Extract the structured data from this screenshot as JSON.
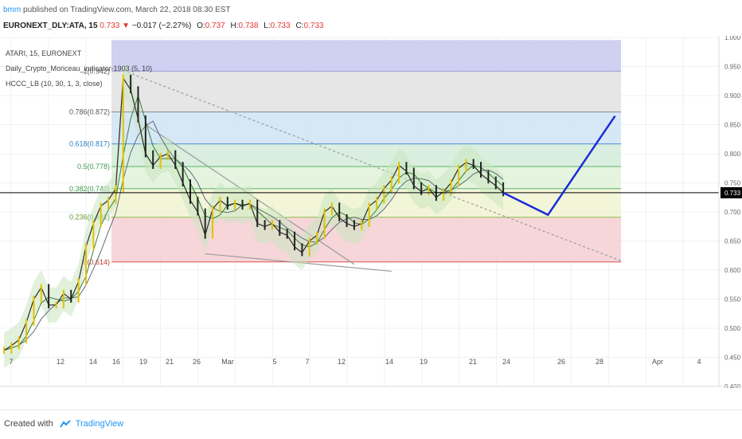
{
  "header": {
    "publisher": "bmm",
    "published_text": "published on TradingView.com, March 22, 2018 08:30 EST",
    "symbol": "EURONEXT_DLY:ATA, 15",
    "last": "0.733",
    "change_arrow": "▼",
    "change": "−0.017 (−2.27%)",
    "o_label": "O:",
    "o": "0.737",
    "h_label": "H:",
    "h": "0.738",
    "l_label": "L:",
    "l": "0.733",
    "c_label": "C:",
    "c": "0.733"
  },
  "legend": {
    "line1": "ATARI, 15, EURONEXT",
    "line2": "Daily_Crypto_Moriceau_indicator-1903 (5, 10)",
    "line3": "HCCC_LB (10, 30, 1, 3, close)"
  },
  "footer": {
    "created_with": "Created with",
    "brand": "TradingView"
  },
  "colors": {
    "up": "#e5c000",
    "down": "#222222",
    "accent": "#2196f3",
    "projection": "#1a2bd6",
    "price_tag": "#000000"
  },
  "chart_data": {
    "type": "line",
    "title": "",
    "ylim": [
      0.4,
      1.0
    ],
    "y_ticks": [
      "1.000",
      "0.950",
      "0.900",
      "0.850",
      "0.800",
      "0.750",
      "0.700",
      "0.650",
      "0.600",
      "0.550",
      "0.500",
      "0.450",
      "0.400"
    ],
    "x_ticks": [
      "7",
      "12",
      "14",
      "16",
      "19",
      "21",
      "26",
      "Mar",
      "5",
      "7",
      "12",
      "14",
      "19",
      "21",
      "24",
      "26",
      "28",
      "Apr",
      "4"
    ],
    "current_price": "0.733",
    "fib_levels": [
      {
        "label": "1(0.942)",
        "value": 0.942
      },
      {
        "label": "0.786(0.872)",
        "value": 0.872
      },
      {
        "label": "0.618(0.817)",
        "value": 0.817
      },
      {
        "label": "0.5(0.778)",
        "value": 0.778
      },
      {
        "label": "0.382(0.740)",
        "value": 0.74
      },
      {
        "label": "0.236(0.691)",
        "value": 0.691
      },
      {
        "label": "0(0.614)",
        "value": 0.614
      }
    ],
    "price_series": [
      {
        "x": 0,
        "y": 0.462
      },
      {
        "x": 1,
        "y": 0.47
      },
      {
        "x": 2,
        "y": 0.48
      },
      {
        "x": 3,
        "y": 0.51
      },
      {
        "x": 4,
        "y": 0.55
      },
      {
        "x": 5,
        "y": 0.57
      },
      {
        "x": 6,
        "y": 0.54
      },
      {
        "x": 7,
        "y": 0.54
      },
      {
        "x": 8,
        "y": 0.56
      },
      {
        "x": 9,
        "y": 0.55
      },
      {
        "x": 10,
        "y": 0.58
      },
      {
        "x": 11,
        "y": 0.64
      },
      {
        "x": 12,
        "y": 0.68
      },
      {
        "x": 13,
        "y": 0.71
      },
      {
        "x": 14,
        "y": 0.72
      },
      {
        "x": 15,
        "y": 0.74
      },
      {
        "x": 16,
        "y": 0.93
      },
      {
        "x": 17,
        "y": 0.91
      },
      {
        "x": 18,
        "y": 0.86
      },
      {
        "x": 19,
        "y": 0.8
      },
      {
        "x": 20,
        "y": 0.78
      },
      {
        "x": 21,
        "y": 0.795
      },
      {
        "x": 22,
        "y": 0.8
      },
      {
        "x": 23,
        "y": 0.78
      },
      {
        "x": 24,
        "y": 0.75
      },
      {
        "x": 25,
        "y": 0.72
      },
      {
        "x": 26,
        "y": 0.7
      },
      {
        "x": 27,
        "y": 0.66
      },
      {
        "x": 28,
        "y": 0.705
      },
      {
        "x": 29,
        "y": 0.72
      },
      {
        "x": 30,
        "y": 0.71
      },
      {
        "x": 31,
        "y": 0.715
      },
      {
        "x": 32,
        "y": 0.71
      },
      {
        "x": 33,
        "y": 0.715
      },
      {
        "x": 34,
        "y": 0.68
      },
      {
        "x": 35,
        "y": 0.675
      },
      {
        "x": 36,
        "y": 0.68
      },
      {
        "x": 37,
        "y": 0.665
      },
      {
        "x": 38,
        "y": 0.66
      },
      {
        "x": 39,
        "y": 0.64
      },
      {
        "x": 40,
        "y": 0.63
      },
      {
        "x": 41,
        "y": 0.65
      },
      {
        "x": 42,
        "y": 0.66
      },
      {
        "x": 43,
        "y": 0.7
      },
      {
        "x": 44,
        "y": 0.71
      },
      {
        "x": 45,
        "y": 0.69
      },
      {
        "x": 46,
        "y": 0.68
      },
      {
        "x": 47,
        "y": 0.675
      },
      {
        "x": 48,
        "y": 0.68
      },
      {
        "x": 49,
        "y": 0.71
      },
      {
        "x": 50,
        "y": 0.72
      },
      {
        "x": 51,
        "y": 0.74
      },
      {
        "x": 52,
        "y": 0.755
      },
      {
        "x": 53,
        "y": 0.78
      },
      {
        "x": 54,
        "y": 0.77
      },
      {
        "x": 55,
        "y": 0.745
      },
      {
        "x": 56,
        "y": 0.735
      },
      {
        "x": 57,
        "y": 0.74
      },
      {
        "x": 58,
        "y": 0.725
      },
      {
        "x": 59,
        "y": 0.735
      },
      {
        "x": 60,
        "y": 0.75
      },
      {
        "x": 61,
        "y": 0.775
      },
      {
        "x": 62,
        "y": 0.785
      },
      {
        "x": 63,
        "y": 0.78
      },
      {
        "x": 64,
        "y": 0.765
      },
      {
        "x": 65,
        "y": 0.755
      },
      {
        "x": 66,
        "y": 0.745
      },
      {
        "x": 67,
        "y": 0.733
      }
    ],
    "projection": [
      {
        "x": 67,
        "y": 0.733
      },
      {
        "x": 73,
        "y": 0.695
      },
      {
        "x": 82,
        "y": 0.865
      }
    ],
    "trendlines": [
      {
        "from": {
          "x": 16,
          "y": 0.943
        },
        "to": {
          "x": 83,
          "y": 0.615
        },
        "style": "dotted"
      },
      {
        "from": {
          "x": 19,
          "y": 0.85
        },
        "to": {
          "x": 47,
          "y": 0.61
        },
        "style": "solid"
      },
      {
        "from": {
          "x": 27,
          "y": 0.628
        },
        "to": {
          "x": 52,
          "y": 0.598
        },
        "style": "solid"
      }
    ]
  }
}
